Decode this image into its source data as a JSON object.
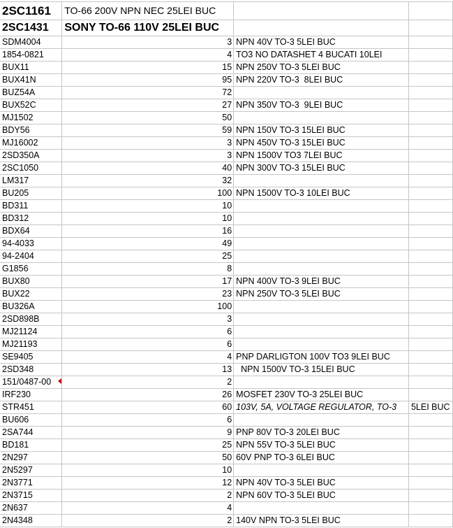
{
  "sheet": {
    "header_rows": [
      {
        "a": "2SC1161",
        "b": "TO-66 200V NPN NEC 25LEI BUC"
      },
      {
        "a": "2SC1431",
        "b": "SONY TO-66 110V   25LEI BUC"
      }
    ],
    "rows": [
      {
        "a": "SDM4004",
        "b": "3",
        "c": "NPN 40V TO-3 5LEI BUC",
        "d": ""
      },
      {
        "a": "1854-0821",
        "b": "4",
        "c": "TO3 NO DATASHET 4 BUCATI 10LEI",
        "d": ""
      },
      {
        "a": "BUX11",
        "b": "15",
        "c": "NPN 250V TO-3 5LEI BUC",
        "d": ""
      },
      {
        "a": "BUX41N",
        "b": "95",
        "c": "NPN 220V TO-3  8LEI BUC",
        "d": ""
      },
      {
        "a": "BUZ54A",
        "b": "72",
        "c": "",
        "d": ""
      },
      {
        "a": "BUX52C",
        "b": "27",
        "c": "NPN 350V TO-3  9LEI BUC",
        "d": ""
      },
      {
        "a": "MJ1502",
        "b": "50",
        "c": "",
        "d": ""
      },
      {
        "a": "BDY56",
        "b": "59",
        "c": "NPN 150V TO-3 15LEI BUC",
        "d": ""
      },
      {
        "a": "MJ16002",
        "b": "3",
        "c": "NPN 450V TO-3 15LEI BUC",
        "d": ""
      },
      {
        "a": "2SD350A",
        "b": "3",
        "c": "NPN 1500V TO3 7LEI BUC",
        "d": ""
      },
      {
        "a": "2SC1050",
        "b": "40",
        "c": "NPN 300V TO-3 15LEI BUC",
        "d": ""
      },
      {
        "a": "LM317",
        "b": "32",
        "c": "",
        "d": ""
      },
      {
        "a": "BU205",
        "b": "100",
        "c": "NPN 1500V TO-3 10LEI BUC",
        "d": ""
      },
      {
        "a": "BD311",
        "b": "10",
        "c": "",
        "d": ""
      },
      {
        "a": "BD312",
        "b": "10",
        "c": "",
        "d": ""
      },
      {
        "a": "BDX64",
        "b": "16",
        "c": "",
        "d": ""
      },
      {
        "a": "94-4033",
        "b": "49",
        "c": "",
        "d": ""
      },
      {
        "a": "94-2404",
        "b": "25",
        "c": "",
        "d": ""
      },
      {
        "a": "G1856",
        "b": "8",
        "c": "",
        "d": ""
      },
      {
        "a": "BUX80",
        "b": "17",
        "c": "NPN 400V TO-3 9LEI BUC",
        "d": ""
      },
      {
        "a": "BUX22",
        "b": "23",
        "c": "NPN 250V TO-3 5LEI BUC",
        "d": ""
      },
      {
        "a": "BU326A",
        "b": "100",
        "c": "",
        "d": ""
      },
      {
        "a": "2SD898B",
        "b": "3",
        "c": "",
        "d": ""
      },
      {
        "a": "MJ21124",
        "b": "6",
        "c": "",
        "d": ""
      },
      {
        "a": "MJ21193",
        "b": "6",
        "c": "",
        "d": ""
      },
      {
        "a": "SE9405",
        "b": "4",
        "c": "PNP DARLIGTON 100V TO3 9LEI BUC",
        "d": ""
      },
      {
        "a": "2SD348",
        "b": "13",
        "c": "  NPN 1500V TO-3 15LEI BUC",
        "d": ""
      },
      {
        "a": "151/0487-00",
        "b": "2",
        "c": "",
        "d": "",
        "comment": true
      },
      {
        "a": "IRF230",
        "b": "26",
        "c": "MOSFET 230V TO-3 25LEI BUC",
        "d": ""
      },
      {
        "a": "STR451",
        "b": "60",
        "c": "103V, 5A, VOLTAGE REGULATOR, TO-3",
        "d": "5LEI BUC",
        "italic_c": true
      },
      {
        "a": "BU606",
        "b": "6",
        "c": "",
        "d": ""
      },
      {
        "a": "2SA744",
        "b": "9",
        "c": "PNP 80V TO-3 20LEI BUC",
        "d": ""
      },
      {
        "a": "BD181",
        "b": "25",
        "c": "NPN 55V TO-3 5LEI BUC",
        "d": ""
      },
      {
        "a": "2N297",
        "b": "50",
        "c": "60V PNP TO-3 6LEI BUC",
        "d": ""
      },
      {
        "a": "2N5297",
        "b": "10",
        "c": "",
        "d": ""
      },
      {
        "a": "2N3771",
        "b": "12",
        "c": "NPN 40V TO-3 5LEI BUC",
        "d": ""
      },
      {
        "a": "2N3715",
        "b": "2",
        "c": "NPN 60V TO-3 5LEI BUC",
        "d": ""
      },
      {
        "a": "2N637",
        "b": "4",
        "c": "",
        "d": ""
      },
      {
        "a": "2N4348",
        "b": "2",
        "c": "140V NPN TO-3 5LEI BUC",
        "d": ""
      }
    ]
  },
  "colors": {
    "gridline": "#c6c6c6",
    "comment_indicator": "#d00000"
  }
}
